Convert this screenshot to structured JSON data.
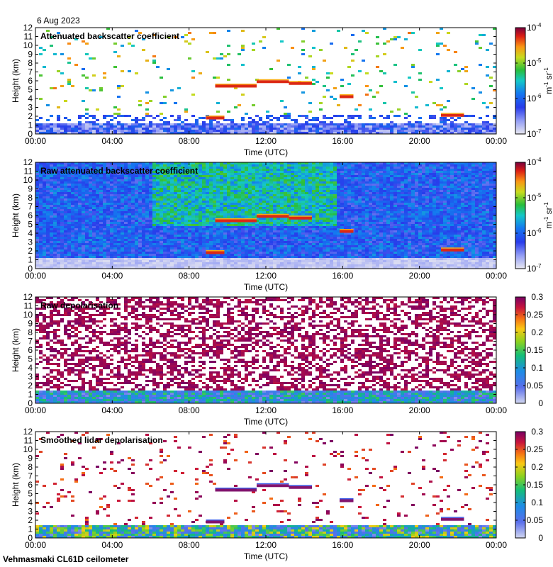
{
  "date": "6 Aug 2023",
  "footer": "Vehmasmaki CL61D ceilometer",
  "chart_data": [
    {
      "type": "heatmap",
      "title": "Attenuated backscatter coefficient",
      "xlabel": "Time (UTC)",
      "ylabel": "Height (km)",
      "x_ticks": [
        "00:00",
        "04:00",
        "08:00",
        "12:00",
        "16:00",
        "20:00",
        "00:00"
      ],
      "y_ticks": [
        "0",
        "1",
        "2",
        "3",
        "4",
        "5",
        "6",
        "7",
        "8",
        "9",
        "10",
        "11",
        "12"
      ],
      "ylim": [
        0,
        12
      ],
      "colorbar": {
        "scale": "log",
        "range": [
          1e-07,
          0.0001
        ],
        "ticks": [
          {
            "base": "10",
            "exp": "-7"
          },
          {
            "base": "10",
            "exp": "-6"
          },
          {
            "base": "10",
            "exp": "-5"
          },
          {
            "base": "10",
            "exp": "-4"
          }
        ],
        "unit": {
          "m": "m",
          "m_exp": "-1",
          "sr": "sr",
          "sr_exp": "-1"
        }
      }
    },
    {
      "type": "heatmap",
      "title": "Raw attenuated backscatter coefficient",
      "xlabel": "Time (UTC)",
      "ylabel": "Height (km)",
      "x_ticks": [
        "00:00",
        "04:00",
        "08:00",
        "12:00",
        "16:00",
        "20:00",
        "00:00"
      ],
      "y_ticks": [
        "0",
        "1",
        "2",
        "3",
        "4",
        "5",
        "6",
        "7",
        "8",
        "9",
        "10",
        "11",
        "12"
      ],
      "ylim": [
        0,
        12
      ],
      "colorbar": {
        "scale": "log",
        "range": [
          1e-07,
          0.0001
        ],
        "ticks": [
          {
            "base": "10",
            "exp": "-7"
          },
          {
            "base": "10",
            "exp": "-6"
          },
          {
            "base": "10",
            "exp": "-5"
          },
          {
            "base": "10",
            "exp": "-4"
          }
        ],
        "unit": {
          "m": "m",
          "m_exp": "-1",
          "sr": "sr",
          "sr_exp": "-1"
        }
      }
    },
    {
      "type": "heatmap",
      "title": "Raw depolarisation",
      "xlabel": "Time (UTC)",
      "ylabel": "Height (km)",
      "x_ticks": [
        "00:00",
        "04:00",
        "08:00",
        "12:00",
        "16:00",
        "20:00",
        "00:00"
      ],
      "y_ticks": [
        "0",
        "1",
        "2",
        "3",
        "4",
        "5",
        "6",
        "7",
        "8",
        "9",
        "10",
        "11",
        "12"
      ],
      "ylim": [
        0,
        12
      ],
      "colorbar": {
        "scale": "linear",
        "range": [
          0,
          0.3
        ],
        "ticks": [
          {
            "base": "0"
          },
          {
            "base": "0.05"
          },
          {
            "base": "0.1"
          },
          {
            "base": "0.15"
          },
          {
            "base": "0.2"
          },
          {
            "base": "0.25"
          },
          {
            "base": "0.3"
          }
        ]
      }
    },
    {
      "type": "heatmap",
      "title": "Smoothed lidar depolarisation",
      "xlabel": "Time (UTC)",
      "ylabel": "Height (km)",
      "x_ticks": [
        "00:00",
        "04:00",
        "08:00",
        "12:00",
        "16:00",
        "20:00",
        "00:00"
      ],
      "y_ticks": [
        "0",
        "1",
        "2",
        "3",
        "4",
        "5",
        "6",
        "7",
        "8",
        "9",
        "10",
        "11",
        "12"
      ],
      "ylim": [
        0,
        12
      ],
      "colorbar": {
        "scale": "linear",
        "range": [
          0,
          0.3
        ],
        "ticks": [
          {
            "base": "0"
          },
          {
            "base": "0.05"
          },
          {
            "base": "0.1"
          },
          {
            "base": "0.15"
          },
          {
            "base": "0.2"
          },
          {
            "base": "0.25"
          },
          {
            "base": "0.3"
          }
        ]
      }
    }
  ]
}
